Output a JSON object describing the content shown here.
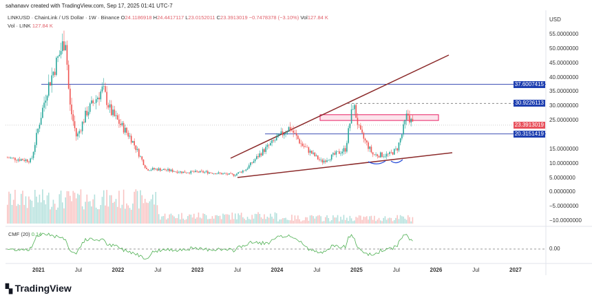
{
  "header": {
    "credit": "sahanavv created with TradingView.com, Sep 17, 2025 01:41 UTC-7",
    "symbol": "LINKUSD · ChainLink / US Dollar · 1W · Binance",
    "open_label": "O",
    "open": "24.1186918",
    "high_label": "H",
    "high": "24.4417117",
    "low_label": "L",
    "low": "23.0152011",
    "close_label": "C",
    "close": "23.3913019",
    "change": "−0.7478378 (−3.10%)",
    "vol_label": "Vol",
    "vol": "127.84 K",
    "vol_row_label": "Vol · LINK",
    "vol_row_value": "127.84 K"
  },
  "price_axis": {
    "currency": "USD",
    "ticks": [
      "55.0000000",
      "50.0000000",
      "45.0000000",
      "40.0000000",
      "35.0000000",
      "30.0000000",
      "25.0000000",
      "15.0000000",
      "10.0000000",
      "5.0000000",
      "0.0000000",
      "−5.0000000",
      "−10.0000000"
    ]
  },
  "price_labels": [
    {
      "text": "37.6007415",
      "value": 37.6007415,
      "color": "#1e3fb0"
    },
    {
      "text": "30.9226113",
      "value": 30.9226113,
      "color": "#1e3fb0"
    },
    {
      "text": "23.3913019",
      "value": 23.3913019,
      "color": "#e8505b"
    },
    {
      "text": "20.3151419",
      "value": 20.3151419,
      "color": "#1e3fb0"
    }
  ],
  "time_axis": [
    "2021",
    "Jul",
    "2022",
    "Jul",
    "2023",
    "Jul",
    "2024",
    "Jul",
    "2025",
    "Jul",
    "2026",
    "Jul",
    "2027"
  ],
  "cmf": {
    "label": "CMF (20)",
    "value": "0.14",
    "zero": "0.00",
    "color": "#4caf50"
  },
  "colors": {
    "up": "#26a69a",
    "down": "#ef5350",
    "channel": "#8b2a2a",
    "level": "#3f51b5",
    "zone": "#e91e63"
  },
  "chart_data": {
    "type": "candlestick",
    "price_path": [
      [
        2020.6,
        12
      ],
      [
        2020.9,
        11
      ],
      [
        2021.0,
        24
      ],
      [
        2021.1,
        36
      ],
      [
        2021.33,
        54
      ],
      [
        2021.38,
        31
      ],
      [
        2021.47,
        19
      ],
      [
        2021.6,
        28
      ],
      [
        2021.8,
        36
      ],
      [
        2021.9,
        28
      ],
      [
        2022.15,
        19
      ],
      [
        2022.35,
        8
      ],
      [
        2022.5,
        8
      ],
      [
        2022.8,
        7
      ],
      [
        2023.1,
        7
      ],
      [
        2023.45,
        6
      ],
      [
        2023.6,
        8
      ],
      [
        2023.8,
        14
      ],
      [
        2024.15,
        22.6
      ],
      [
        2024.3,
        16.6
      ],
      [
        2024.55,
        10.6
      ],
      [
        2024.85,
        15
      ],
      [
        2024.95,
        31
      ],
      [
        2025.03,
        21
      ],
      [
        2025.2,
        13
      ],
      [
        2025.4,
        13
      ],
      [
        2025.5,
        15
      ],
      [
        2025.56,
        20
      ],
      [
        2025.63,
        27.4
      ],
      [
        2025.7,
        23.4
      ]
    ],
    "levels": [
      37.6007415,
      30.9226113,
      20.3151419
    ],
    "zone": [
      25,
      27
    ]
  },
  "brand": "TradingView"
}
